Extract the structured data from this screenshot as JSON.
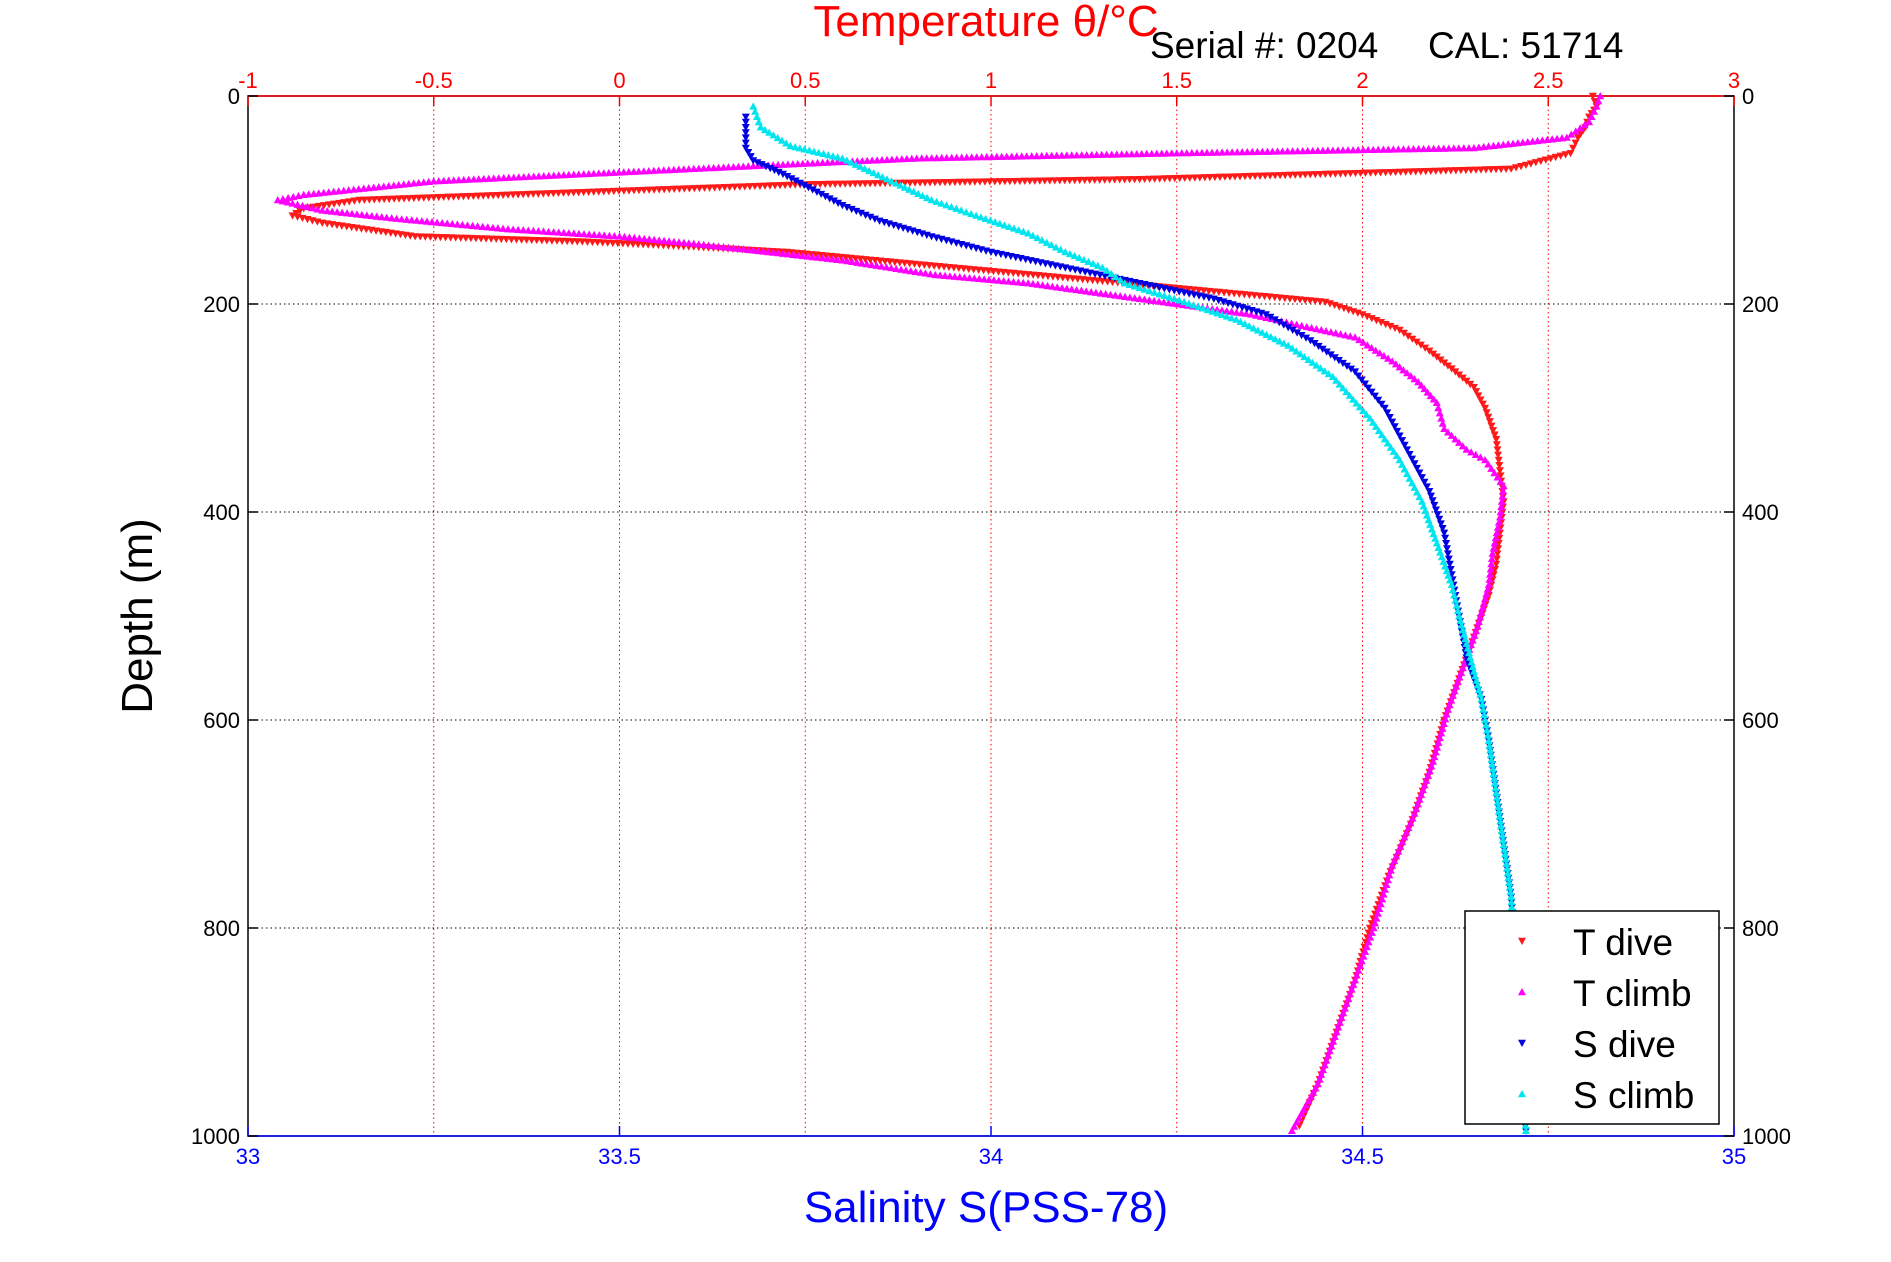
{
  "chart_data": {
    "type": "scatter",
    "title": "Temperature θ/°C",
    "header": {
      "serial": "Serial #: 0204",
      "cal": "CAL: 51714"
    },
    "ylabel": "Depth (m)",
    "xlabel_bottom": "Salinity S(PSS-78)",
    "xlabel_top": "Temperature θ/°C",
    "y_axis": {
      "range": [
        0,
        1000
      ],
      "reversed": true,
      "ticks": [
        "0",
        "200",
        "400",
        "600",
        "800",
        "1000"
      ]
    },
    "x_bottom": {
      "range": [
        33,
        35
      ],
      "ticks": [
        "33",
        "33.5",
        "34",
        "34.5",
        "35"
      ]
    },
    "x_top": {
      "range": [
        -1,
        3
      ],
      "ticks": [
        "-1",
        "-0.5",
        "0",
        "0.5",
        "1",
        "1.5",
        "2",
        "2.5",
        "3"
      ]
    },
    "grid": true,
    "legend_position": "bottom-right",
    "colors": {
      "temp_axis": "#ff0000",
      "sal_axis": "#0000ff",
      "t_dive": "#ff1a1a",
      "t_climb": "#ff00ff",
      "s_dive": "#0000e0",
      "s_climb": "#00e5ee"
    },
    "series": [
      {
        "name": "T dive",
        "axis": "temperature",
        "marker": "triangle-down",
        "color": "#ff1a1a",
        "points": [
          [
            2.62,
            0
          ],
          [
            2.63,
            10
          ],
          [
            2.61,
            20
          ],
          [
            2.6,
            30
          ],
          [
            2.58,
            40
          ],
          [
            2.56,
            55
          ],
          [
            2.4,
            70
          ],
          [
            1.4,
            80
          ],
          [
            0.5,
            85
          ],
          [
            -0.3,
            95
          ],
          [
            -0.7,
            100
          ],
          [
            -0.85,
            108
          ],
          [
            -0.88,
            115
          ],
          [
            -0.8,
            122
          ],
          [
            -0.55,
            135
          ],
          [
            -0.1,
            140
          ],
          [
            0.2,
            145
          ],
          [
            0.45,
            150
          ],
          [
            0.9,
            165
          ],
          [
            1.3,
            178
          ],
          [
            1.6,
            188
          ],
          [
            1.9,
            198
          ],
          [
            2.0,
            210
          ],
          [
            2.1,
            225
          ],
          [
            2.18,
            245
          ],
          [
            2.25,
            265
          ],
          [
            2.3,
            280
          ],
          [
            2.33,
            300
          ],
          [
            2.36,
            330
          ],
          [
            2.37,
            360
          ],
          [
            2.38,
            390
          ],
          [
            2.37,
            420
          ],
          [
            2.36,
            450
          ],
          [
            2.34,
            480
          ],
          [
            2.3,
            520
          ],
          [
            2.26,
            560
          ],
          [
            2.22,
            600
          ],
          [
            2.18,
            650
          ],
          [
            2.13,
            700
          ],
          [
            2.07,
            750
          ],
          [
            2.02,
            800
          ],
          [
            1.98,
            850
          ],
          [
            1.93,
            900
          ],
          [
            1.88,
            950
          ],
          [
            1.83,
            990
          ]
        ]
      },
      {
        "name": "T climb",
        "axis": "temperature",
        "marker": "triangle-up",
        "color": "#ff00ff",
        "points": [
          [
            2.64,
            0
          ],
          [
            2.63,
            10
          ],
          [
            2.61,
            25
          ],
          [
            2.55,
            40
          ],
          [
            2.3,
            50
          ],
          [
            1.5,
            55
          ],
          [
            0.8,
            60
          ],
          [
            0.2,
            70
          ],
          [
            -0.5,
            82
          ],
          [
            -0.85,
            95
          ],
          [
            -0.92,
            100
          ],
          [
            -0.8,
            110
          ],
          [
            -0.6,
            118
          ],
          [
            -0.3,
            128
          ],
          [
            0.0,
            135
          ],
          [
            0.2,
            142
          ],
          [
            0.4,
            150
          ],
          [
            0.6,
            158
          ],
          [
            0.85,
            172
          ],
          [
            1.1,
            180
          ],
          [
            1.4,
            195
          ],
          [
            1.7,
            210
          ],
          [
            1.85,
            222
          ],
          [
            1.98,
            232
          ],
          [
            2.08,
            255
          ],
          [
            2.15,
            275
          ],
          [
            2.2,
            295
          ],
          [
            2.22,
            320
          ],
          [
            2.28,
            340
          ],
          [
            2.33,
            350
          ],
          [
            2.38,
            375
          ],
          [
            2.37,
            405
          ],
          [
            2.35,
            440
          ],
          [
            2.34,
            470
          ],
          [
            2.31,
            510
          ],
          [
            2.27,
            550
          ],
          [
            2.23,
            590
          ],
          [
            2.19,
            640
          ],
          [
            2.14,
            690
          ],
          [
            2.08,
            740
          ],
          [
            2.03,
            800
          ],
          [
            1.98,
            850
          ],
          [
            1.93,
            900
          ],
          [
            1.88,
            950
          ],
          [
            1.81,
            995
          ]
        ]
      },
      {
        "name": "S dive",
        "axis": "salinity",
        "marker": "triangle-down",
        "color": "#0000e0",
        "points": [
          [
            33.67,
            20
          ],
          [
            33.67,
            50
          ],
          [
            33.68,
            62
          ],
          [
            33.72,
            75
          ],
          [
            33.76,
            90
          ],
          [
            33.8,
            105
          ],
          [
            33.85,
            120
          ],
          [
            33.92,
            135
          ],
          [
            34.0,
            150
          ],
          [
            34.1,
            165
          ],
          [
            34.2,
            180
          ],
          [
            34.3,
            195
          ],
          [
            34.37,
            210
          ],
          [
            34.43,
            235
          ],
          [
            34.49,
            265
          ],
          [
            34.53,
            300
          ],
          [
            34.56,
            340
          ],
          [
            34.59,
            380
          ],
          [
            34.61,
            420
          ],
          [
            34.62,
            460
          ],
          [
            34.63,
            500
          ],
          [
            34.64,
            540
          ],
          [
            34.66,
            580
          ],
          [
            34.67,
            620
          ],
          [
            34.68,
            670
          ],
          [
            34.69,
            720
          ],
          [
            34.7,
            770
          ],
          [
            34.705,
            820
          ],
          [
            34.71,
            880
          ],
          [
            34.71,
            940
          ],
          [
            34.72,
            995
          ]
        ]
      },
      {
        "name": "S climb",
        "axis": "salinity",
        "marker": "triangle-up",
        "color": "#00e5ee",
        "points": [
          [
            33.68,
            10
          ],
          [
            33.69,
            30
          ],
          [
            33.73,
            48
          ],
          [
            33.8,
            60
          ],
          [
            33.86,
            80
          ],
          [
            33.92,
            100
          ],
          [
            33.98,
            115
          ],
          [
            34.05,
            132
          ],
          [
            34.1,
            150
          ],
          [
            34.15,
            165
          ],
          [
            34.18,
            180
          ],
          [
            34.26,
            198
          ],
          [
            34.33,
            215
          ],
          [
            34.4,
            240
          ],
          [
            34.46,
            270
          ],
          [
            34.51,
            310
          ],
          [
            34.55,
            350
          ],
          [
            34.58,
            390
          ],
          [
            34.6,
            430
          ],
          [
            34.62,
            470
          ],
          [
            34.63,
            500
          ],
          [
            34.645,
            540
          ],
          [
            34.66,
            580
          ],
          [
            34.67,
            620
          ],
          [
            34.68,
            670
          ],
          [
            34.69,
            720
          ],
          [
            34.7,
            770
          ],
          [
            34.705,
            820
          ],
          [
            34.71,
            880
          ],
          [
            34.715,
            940
          ],
          [
            34.72,
            995
          ]
        ]
      }
    ]
  }
}
